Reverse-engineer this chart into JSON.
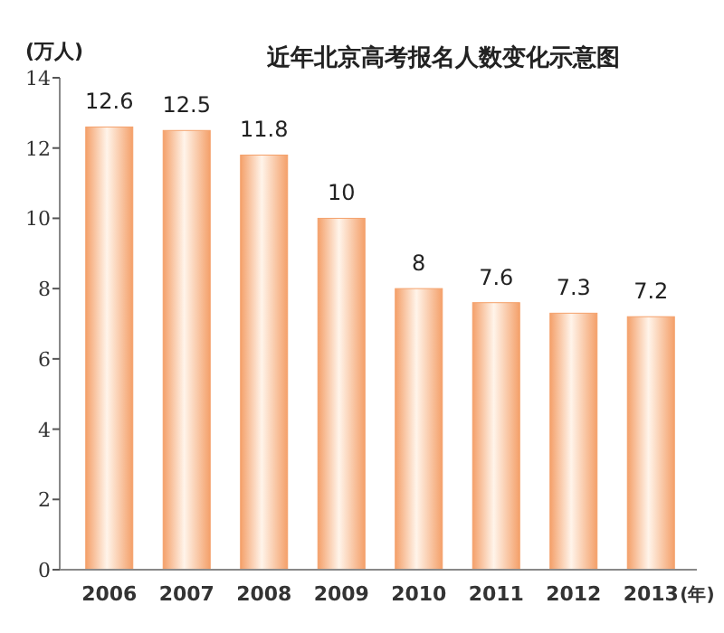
{
  "chart_data": {
    "type": "bar",
    "title": "近年北京高考报名人数变化示意图",
    "ylabel": "(万人)",
    "xlabel": "(年)",
    "categories": [
      "2006",
      "2007",
      "2008",
      "2009",
      "2010",
      "2011",
      "2012",
      "2013"
    ],
    "values": [
      12.6,
      12.5,
      11.8,
      10,
      8,
      7.6,
      7.3,
      7.2
    ],
    "color": "#f4a06a",
    "ylim": [
      0,
      14
    ],
    "yticks": [
      0,
      2,
      4,
      6,
      8,
      10,
      12,
      14
    ],
    "data_labels": true
  }
}
